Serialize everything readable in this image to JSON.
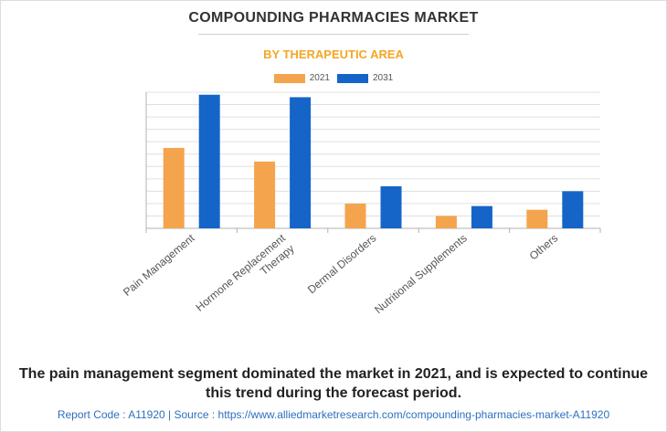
{
  "header": {
    "title": "COMPOUNDING PHARMACIES MARKET",
    "subtitle": "BY THERAPEUTIC AREA"
  },
  "colors": {
    "subtitle": "#f5a623",
    "series_2021": "#f4a44c",
    "series_2031": "#1565c8",
    "grid": "#e0e0e0",
    "axis": "#b0b0b0",
    "footer": "#2e6fbf"
  },
  "chart_data": {
    "type": "bar",
    "categories": [
      "Pain Management",
      "Hormone Replacement Therapy",
      "Dermal Disorders",
      "Nutritional Supplements",
      "Others"
    ],
    "category_lines": [
      [
        "Pain Management"
      ],
      [
        "Hormone Replacement",
        "Therapy"
      ],
      [
        "Dermal Disorders"
      ],
      [
        "Nutritional Supplements"
      ],
      [
        "Others"
      ]
    ],
    "series": [
      {
        "name": "2021",
        "values": [
          6.5,
          5.4,
          2.0,
          1.0,
          1.5
        ]
      },
      {
        "name": "2031",
        "values": [
          10.8,
          10.6,
          3.4,
          1.8,
          3.0
        ]
      }
    ],
    "title": "COMPOUNDING PHARMACIES MARKET",
    "subtitle": "BY THERAPEUTIC AREA",
    "xlabel": "",
    "ylabel": "",
    "ylim": [
      0,
      11
    ],
    "grid": true,
    "y_tick_labels_shown": false,
    "legend_position": "top-center"
  },
  "caption": "The pain management segment dominated the market in 2021, and is expected to continue this trend during the forecast period.",
  "footer": {
    "text": "Report Code : A11920  |  Source : https://www.alliedmarketresearch.com/compounding-pharmacies-market-A11920"
  }
}
